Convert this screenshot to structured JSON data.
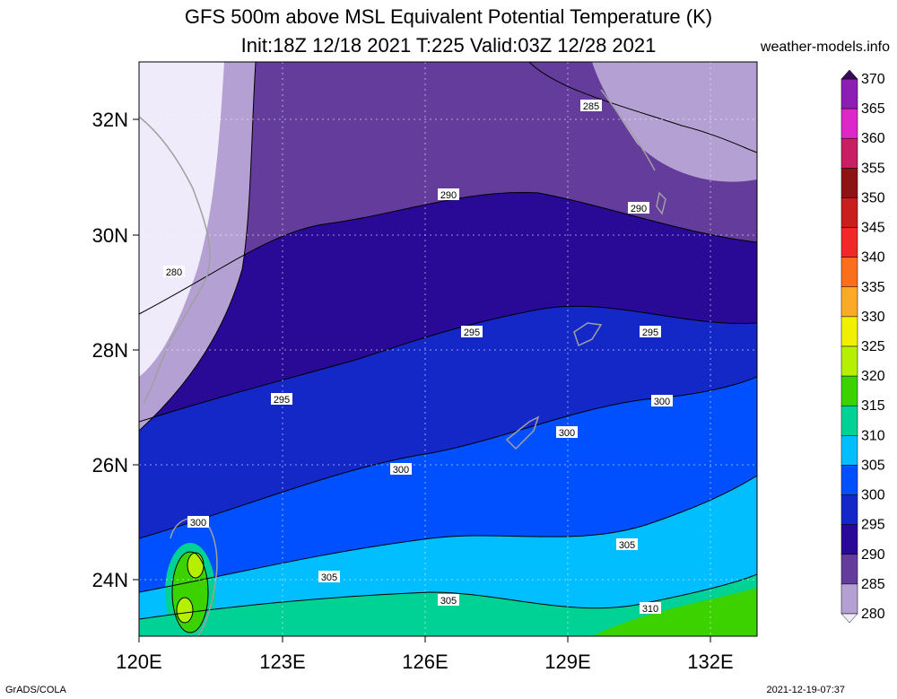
{
  "header": {
    "title": "GFS 500m above MSL Equivalent Potential Temperature (K)",
    "subtitle": "Init:18Z 12/18 2021 T:225 Valid:03Z 12/28 2021",
    "site": "weather-models.info"
  },
  "footer": {
    "left": "GrADS/COLA",
    "right": "2021-12-19-07:37"
  },
  "map": {
    "lat_labels": [
      "32N",
      "30N",
      "28N",
      "26N",
      "24N"
    ],
    "lon_labels": [
      "120E",
      "123E",
      "126E",
      "129E",
      "132E"
    ],
    "contour_labels": [
      "285",
      "290",
      "290",
      "280",
      "295",
      "295",
      "295",
      "300",
      "300",
      "300",
      "300",
      "305",
      "305",
      "305",
      "310"
    ]
  },
  "colorbar": {
    "levels": [
      "370",
      "365",
      "360",
      "355",
      "350",
      "345",
      "340",
      "335",
      "330",
      "325",
      "320",
      "315",
      "310",
      "305",
      "300",
      "295",
      "290",
      "285",
      "280"
    ],
    "colors": [
      "#3c0a5a",
      "#8c1eb4",
      "#dc28c8",
      "#c81e64",
      "#8c1414",
      "#c81e1e",
      "#f02828",
      "#fa6e1e",
      "#faaa28",
      "#f0f000",
      "#b4f000",
      "#3cd200",
      "#00d296",
      "#00beff",
      "#0050ff",
      "#1428c8",
      "#280a96",
      "#643c9c",
      "#b4a0d2",
      "#f0ebfa"
    ]
  }
}
